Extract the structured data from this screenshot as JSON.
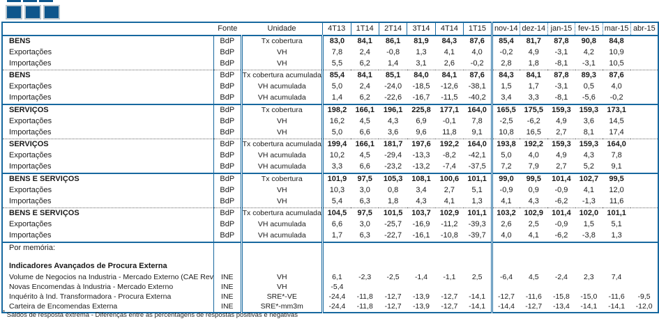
{
  "colors": {
    "accent_blue": "#17689F",
    "logo_blue": "#0E568C"
  },
  "logo": {
    "squares": 3
  },
  "table": {
    "header": {
      "fonte": "Fonte",
      "unidade": "Unidade",
      "periods": [
        "4T13",
        "1T14",
        "2T14",
        "3T14",
        "4T14",
        "1T15",
        "nov-14",
        "dez-14",
        "jan-15",
        "fev-15",
        "mar-15",
        "abr-15"
      ]
    },
    "sections": [
      {
        "divider": "none",
        "rows": [
          {
            "label": "BENS",
            "bold": true,
            "fonte": "BdP",
            "unidade": "Tx cobertura",
            "values": [
              "83,0",
              "84,1",
              "86,1",
              "81,9",
              "84,3",
              "87,6",
              "85,4",
              "81,7",
              "87,8",
              "90,8",
              "84,8",
              ""
            ]
          },
          {
            "label": "Exportações",
            "bold": false,
            "fonte": "BdP",
            "unidade": "VH",
            "values": [
              "7,8",
              "2,4",
              "-0,8",
              "1,3",
              "4,1",
              "4,0",
              "-0,2",
              "4,9",
              "-3,1",
              "4,2",
              "10,9",
              ""
            ]
          },
          {
            "label": "Importações",
            "bold": false,
            "fonte": "BdP",
            "unidade": "VH",
            "values": [
              "5,5",
              "6,2",
              "1,4",
              "3,1",
              "2,6",
              "-0,2",
              "2,8",
              "1,8",
              "-8,1",
              "-3,1",
              "10,5",
              ""
            ]
          }
        ]
      },
      {
        "divider": "dotted",
        "rows": [
          {
            "label": "BENS",
            "bold": true,
            "fonte": "BdP",
            "unidade": "Tx cobertura acumulada",
            "values": [
              "85,4",
              "84,1",
              "85,1",
              "84,0",
              "84,1",
              "87,6",
              "84,3",
              "84,1",
              "87,8",
              "89,3",
              "87,6",
              ""
            ]
          },
          {
            "label": "Exportações",
            "bold": false,
            "fonte": "BdP",
            "unidade": "VH acumulada",
            "values": [
              "5,0",
              "2,4",
              "-24,0",
              "-18,5",
              "-12,6",
              "-38,1",
              "1,5",
              "1,7",
              "-3,1",
              "0,5",
              "4,0",
              ""
            ]
          },
          {
            "label": "Importações",
            "bold": false,
            "fonte": "BdP",
            "unidade": "VH acumulada",
            "values": [
              "1,4",
              "6,2",
              "-22,6",
              "-16,7",
              "-11,5",
              "-40,2",
              "3,4",
              "3,3",
              "-8,1",
              "-5,6",
              "-0,2",
              ""
            ]
          }
        ]
      },
      {
        "divider": "solid",
        "rows": [
          {
            "label": "SERVIÇOS",
            "bold": true,
            "fonte": "BdP",
            "unidade": "Tx cobertura",
            "values": [
              "198,2",
              "166,1",
              "196,1",
              "225,8",
              "177,1",
              "164,0",
              "165,5",
              "175,5",
              "159,3",
              "159,3",
              "173,1",
              ""
            ]
          },
          {
            "label": "Exportações",
            "bold": false,
            "fonte": "BdP",
            "unidade": "VH",
            "values": [
              "16,2",
              "4,5",
              "4,3",
              "6,9",
              "-0,1",
              "7,8",
              "-2,5",
              "-6,2",
              "4,9",
              "3,6",
              "14,5",
              ""
            ]
          },
          {
            "label": "Importações",
            "bold": false,
            "fonte": "BdP",
            "unidade": "VH",
            "values": [
              "5,0",
              "6,6",
              "3,6",
              "9,6",
              "11,8",
              "9,1",
              "10,8",
              "16,5",
              "2,7",
              "8,1",
              "17,4",
              ""
            ]
          }
        ]
      },
      {
        "divider": "dotted",
        "rows": [
          {
            "label": "SERVIÇOS",
            "bold": true,
            "fonte": "BdP",
            "unidade": "Tx cobertura acumulada",
            "values": [
              "199,4",
              "166,1",
              "181,7",
              "197,6",
              "192,2",
              "164,0",
              "193,8",
              "192,2",
              "159,3",
              "159,3",
              "164,0",
              ""
            ]
          },
          {
            "label": "Exportações",
            "bold": false,
            "fonte": "BdP",
            "unidade": "VH acumulada",
            "values": [
              "10,2",
              "4,5",
              "-29,4",
              "-13,3",
              "-8,2",
              "-42,1",
              "5,0",
              "4,0",
              "4,9",
              "4,3",
              "7,8",
              ""
            ]
          },
          {
            "label": "Importações",
            "bold": false,
            "fonte": "BdP",
            "unidade": "VH acumulada",
            "values": [
              "3,3",
              "6,6",
              "-23,2",
              "-13,2",
              "-7,4",
              "-37,5",
              "7,2",
              "7,9",
              "2,7",
              "5,2",
              "9,1",
              ""
            ]
          }
        ]
      },
      {
        "divider": "solid",
        "rows": [
          {
            "label": "BENS E SERVIÇOS",
            "bold": true,
            "fonte": "BdP",
            "unidade": "Tx cobertura",
            "values": [
              "101,9",
              "97,5",
              "105,3",
              "108,1",
              "100,6",
              "101,1",
              "99,0",
              "99,5",
              "101,4",
              "102,7",
              "99,5",
              ""
            ]
          },
          {
            "label": "Exportações",
            "bold": false,
            "fonte": "BdP",
            "unidade": "VH",
            "values": [
              "10,3",
              "3,0",
              "0,8",
              "3,4",
              "2,7",
              "5,1",
              "-0,9",
              "0,9",
              "-0,9",
              "4,1",
              "12,0",
              ""
            ]
          },
          {
            "label": "Importações",
            "bold": false,
            "fonte": "BdP",
            "unidade": "VH",
            "values": [
              "5,4",
              "6,3",
              "1,8",
              "4,3",
              "4,1",
              "1,3",
              "4,1",
              "4,3",
              "-6,2",
              "-1,3",
              "11,6",
              ""
            ]
          }
        ]
      },
      {
        "divider": "dotted",
        "rows": [
          {
            "label": "BENS E SERVIÇOS",
            "bold": true,
            "fonte": "BdP",
            "unidade": "Tx cobertura acumulada",
            "values": [
              "104,5",
              "97,5",
              "101,5",
              "103,7",
              "102,9",
              "101,1",
              "103,2",
              "102,9",
              "101,4",
              "102,0",
              "101,1",
              ""
            ]
          },
          {
            "label": "Exportações",
            "bold": false,
            "fonte": "BdP",
            "unidade": "VH acumulada",
            "values": [
              "6,6",
              "3,0",
              "-25,7",
              "-16,9",
              "-11,2",
              "-39,3",
              "2,6",
              "2,5",
              "-0,9",
              "1,5",
              "5,1",
              ""
            ]
          },
          {
            "label": "Importações",
            "bold": false,
            "fonte": "BdP",
            "unidade": "VH acumulada",
            "values": [
              "1,7",
              "6,3",
              "-22,7",
              "-16,1",
              "-10,8",
              "-39,7",
              "4,0",
              "4,1",
              "-6,2",
              "-3,8",
              "1,3",
              ""
            ]
          }
        ]
      }
    ],
    "memo": {
      "title": "Por memória:",
      "subtitle": "Indicadores Avançados de Procura Externa",
      "rows": [
        {
          "label": "Volume de Negocios na Industria - Mercado Externo (CAE Rev",
          "fonte": "INE",
          "unidade": "VH",
          "values": [
            "6,1",
            "-2,3",
            "-2,5",
            "-1,4",
            "-1,1",
            "2,5",
            "-6,4",
            "4,5",
            "-2,4",
            "2,3",
            "7,4",
            ""
          ]
        },
        {
          "label": "Novas Encomendas à Industria - Mercado Externo",
          "fonte": "INE",
          "unidade": "VH",
          "values": [
            "-5,4",
            "",
            "",
            "",
            "",
            "",
            "",
            "",
            "",
            "",
            "",
            ""
          ]
        },
        {
          "label": "Inquérito à Ind. Transformadora - Procura Externa",
          "fonte": "INE",
          "unidade": "SRE*-VE",
          "values": [
            "-24,4",
            "-11,8",
            "-12,7",
            "-13,9",
            "-12,7",
            "-14,1",
            "-12,7",
            "-11,6",
            "-15,8",
            "-15,0",
            "-11,6",
            "-9,5"
          ]
        },
        {
          "label": "Carteira de Encomendas Externa",
          "fonte": "INE",
          "unidade": "SRE*-mm3m",
          "values": [
            "-24,4",
            "-11,8",
            "-12,7",
            "-13,9",
            "-12,7",
            "-14,1",
            "-14,4",
            "-12,7",
            "-13,4",
            "-14,1",
            "-14,1",
            "-12,0"
          ]
        }
      ]
    },
    "footnote_mark": "*",
    "footnote": "Saldos de resposta extrema - Diferenças entre as percentagens de respostas positivas e negativas"
  }
}
